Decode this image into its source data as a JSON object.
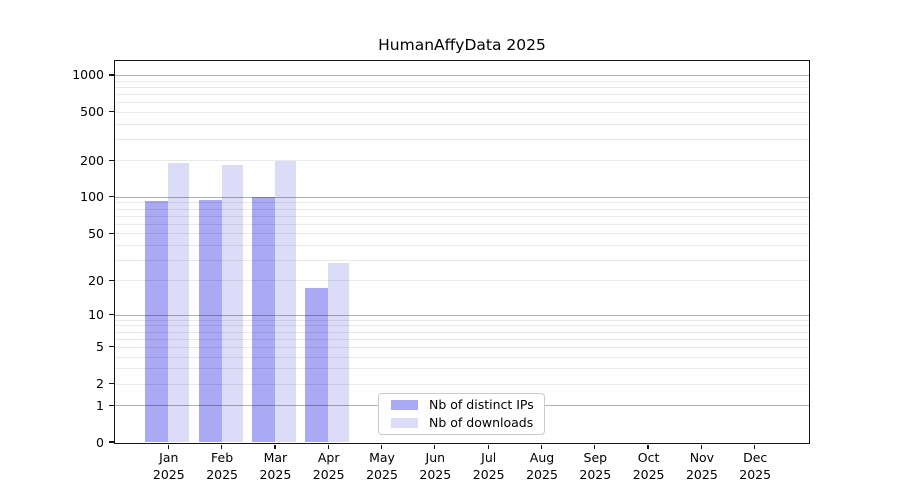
{
  "chart_data": {
    "type": "bar",
    "title": "HumanAffyData 2025",
    "xlabel": "",
    "ylabel": "",
    "scale": "log1p",
    "ylim": [
      0,
      1300
    ],
    "grid": true,
    "legend_position": "inside-bottom-center",
    "categories": [
      "Jan 2025",
      "Feb 2025",
      "Mar 2025",
      "Apr 2025",
      "May 2025",
      "Jun 2025",
      "Jul 2025",
      "Aug 2025",
      "Sep 2025",
      "Oct 2025",
      "Nov 2025",
      "Dec 2025"
    ],
    "y_ticks": [
      0,
      1,
      2,
      5,
      10,
      20,
      50,
      100,
      200,
      500,
      1000
    ],
    "decade_gridlines": [
      1,
      10,
      100,
      1000
    ],
    "minor_gridlines": [
      2,
      3,
      4,
      5,
      6,
      7,
      8,
      9,
      20,
      30,
      40,
      50,
      60,
      70,
      80,
      90,
      200,
      300,
      400,
      500,
      600,
      700,
      800,
      900
    ],
    "series": [
      {
        "name": "Nb of distinct IPs",
        "color": "#a9a9f4",
        "values": [
          92,
          95,
          100,
          17,
          null,
          null,
          null,
          null,
          null,
          null,
          null,
          null
        ]
      },
      {
        "name": "Nb of downloads",
        "color": "#dcdcf8",
        "values": [
          190,
          182,
          196,
          28,
          null,
          null,
          null,
          null,
          null,
          null,
          null,
          null
        ]
      }
    ]
  },
  "colors": {
    "background": "#ffffff",
    "spine": "#151515",
    "decade_gridline": "rgba(0,0,0,0.30)",
    "minor_gridline": "rgba(0,0,0,0.085)",
    "legend_border": "#cbcbcb"
  }
}
